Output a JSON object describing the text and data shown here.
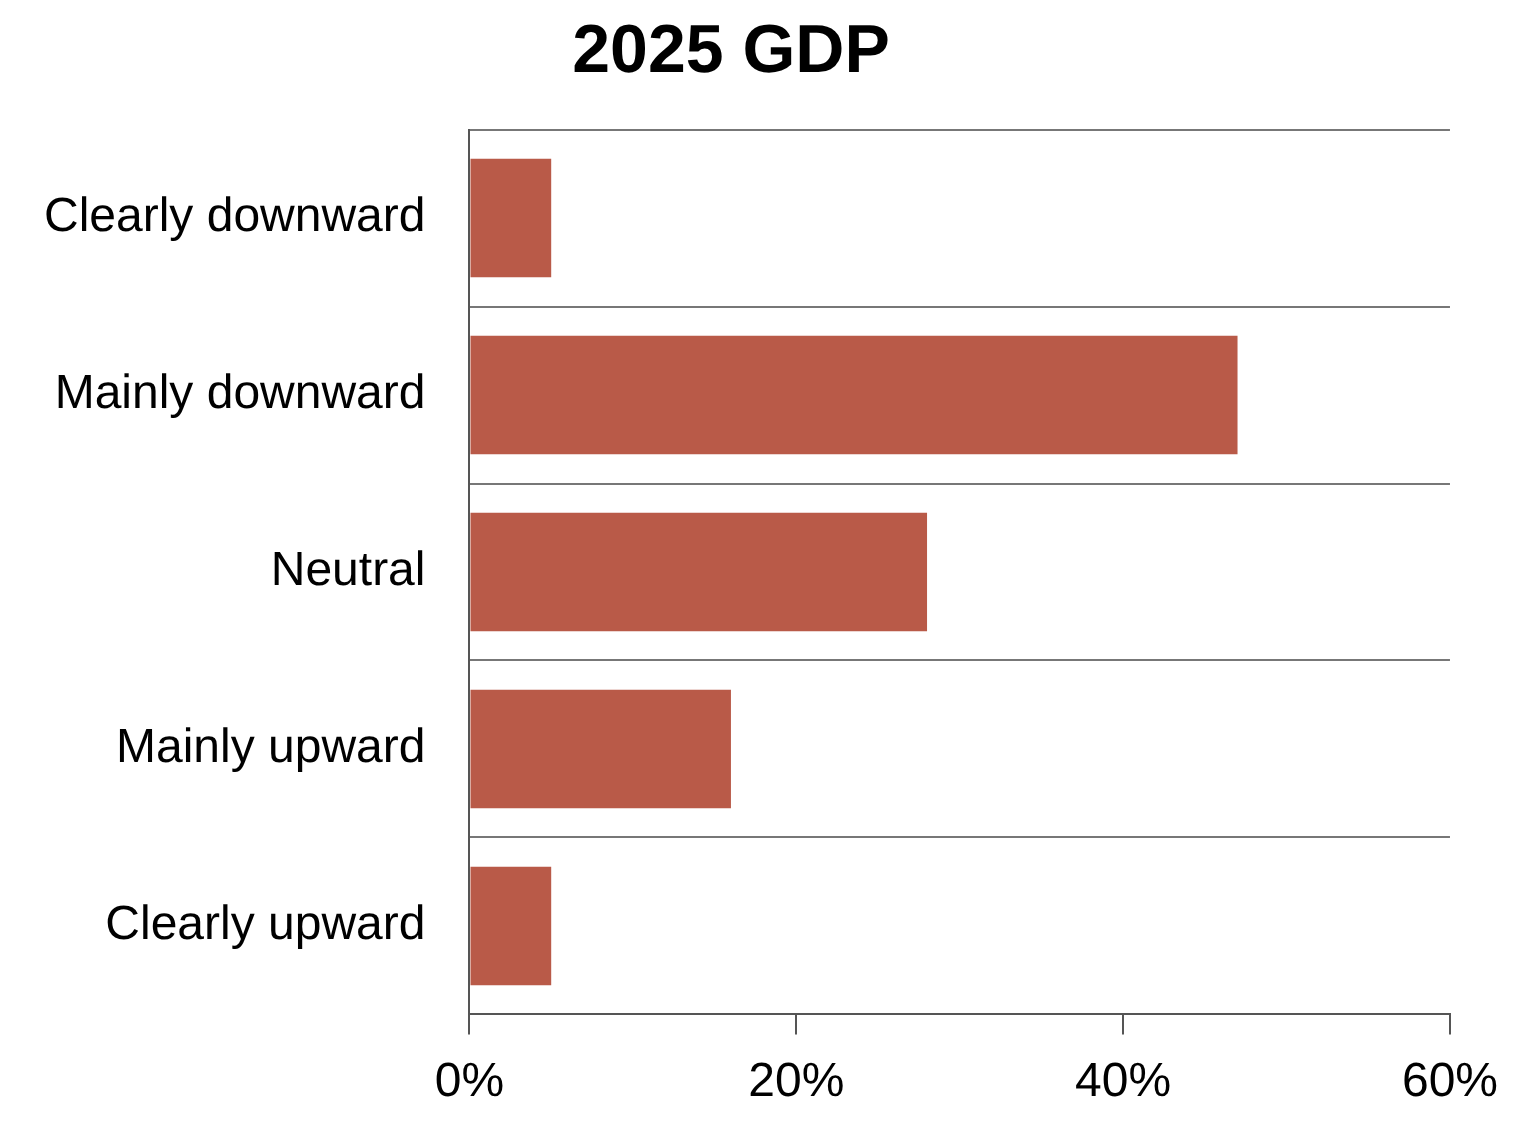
{
  "chart_data": {
    "type": "bar",
    "orientation": "horizontal",
    "title": "2025 GDP",
    "categories": [
      "Clearly downward",
      "Mainly downward",
      "Neutral",
      "Mainly upward",
      "Clearly upward"
    ],
    "values": [
      5,
      47,
      28,
      16,
      5
    ],
    "color": "#b95a48",
    "xlim": [
      0,
      60
    ],
    "xticks": [
      {
        "value": 0,
        "label": "0%"
      },
      {
        "value": 20,
        "label": "20%"
      },
      {
        "value": 40,
        "label": "40%"
      },
      {
        "value": 60,
        "label": "60%"
      }
    ],
    "grid": "y",
    "legend": false
  }
}
